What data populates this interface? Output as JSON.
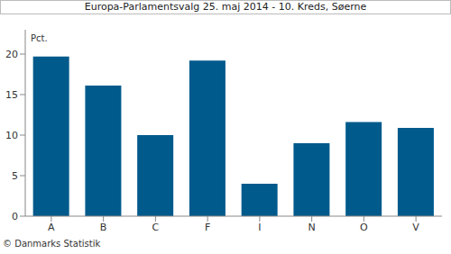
{
  "chart_data": {
    "type": "bar",
    "title": "Europa-Parlamentsvalg 25. maj 2014 - 10. Kreds, Søerne",
    "y_label": "Pct.",
    "source": "© Danmarks Statistik",
    "categories": [
      "A",
      "B",
      "C",
      "F",
      "I",
      "N",
      "O",
      "V"
    ],
    "values": [
      19.7,
      16.1,
      10.0,
      19.2,
      4.0,
      9.0,
      11.6,
      10.9
    ],
    "color": "#005a8c",
    "ylim": [
      0,
      23
    ],
    "yticks": [
      0,
      5,
      10,
      15,
      20
    ],
    "grid": false
  }
}
